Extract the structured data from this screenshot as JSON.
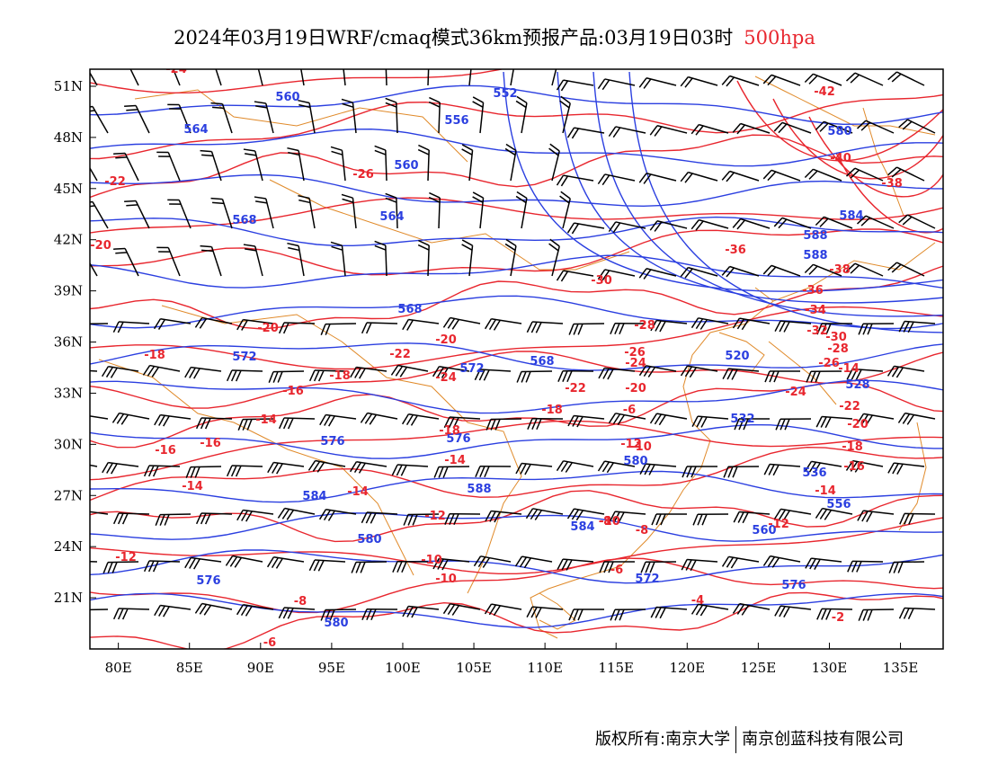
{
  "title": {
    "main": "2024年03月19日WRF/cmaq模式36km预报产品:03月19日03时",
    "level": "500hpa"
  },
  "copyright": {
    "owner": "版权所有:南京大学",
    "company": "南京创蓝科技有限公司"
  },
  "axes": {
    "lon_labels": [
      "80E",
      "85E",
      "90E",
      "95E",
      "100E",
      "105E",
      "110E",
      "115E",
      "120E",
      "125E",
      "130E",
      "135E"
    ],
    "lat_labels": [
      "21N",
      "24N",
      "27N",
      "30N",
      "33N",
      "36N",
      "39N",
      "42N",
      "45N",
      "48N",
      "51N"
    ]
  },
  "colors": {
    "height": "#2b3fe0",
    "temperature": "#e8262e",
    "coast": "#e08a2a",
    "barb": "#000000"
  },
  "height_labels": [
    "560",
    "552",
    "556",
    "564",
    "560",
    "564",
    "568",
    "568",
    "572",
    "572",
    "568",
    "576",
    "576",
    "580",
    "584",
    "588",
    "580",
    "576",
    "580",
    "584",
    "588",
    "588",
    "520",
    "528",
    "532",
    "536",
    "556",
    "560",
    "572",
    "576",
    "580",
    "584"
  ],
  "temperature_labels": [
    "-24",
    "-26",
    "-22",
    "-20",
    "-20",
    "-18",
    "-16",
    "-18",
    "-16",
    "-14",
    "-16",
    "-14",
    "-14",
    "-12",
    "-12",
    "-10",
    "-8",
    "-6",
    "-22",
    "-20",
    "-24",
    "-22",
    "-18",
    "-20",
    "-18",
    "-14",
    "-12",
    "-10",
    "-8",
    "-6",
    "-4",
    "-2",
    "-30",
    "-28",
    "-26",
    "-42",
    "-40",
    "-38",
    "-36",
    "-38",
    "-36",
    "-34",
    "-32",
    "-30",
    "-28",
    "-26",
    "-24",
    "-22",
    "-20",
    "-18",
    "-16",
    "-14",
    "-12",
    "-10",
    "-8",
    "-6",
    "-24",
    "-10",
    "-14"
  ]
}
